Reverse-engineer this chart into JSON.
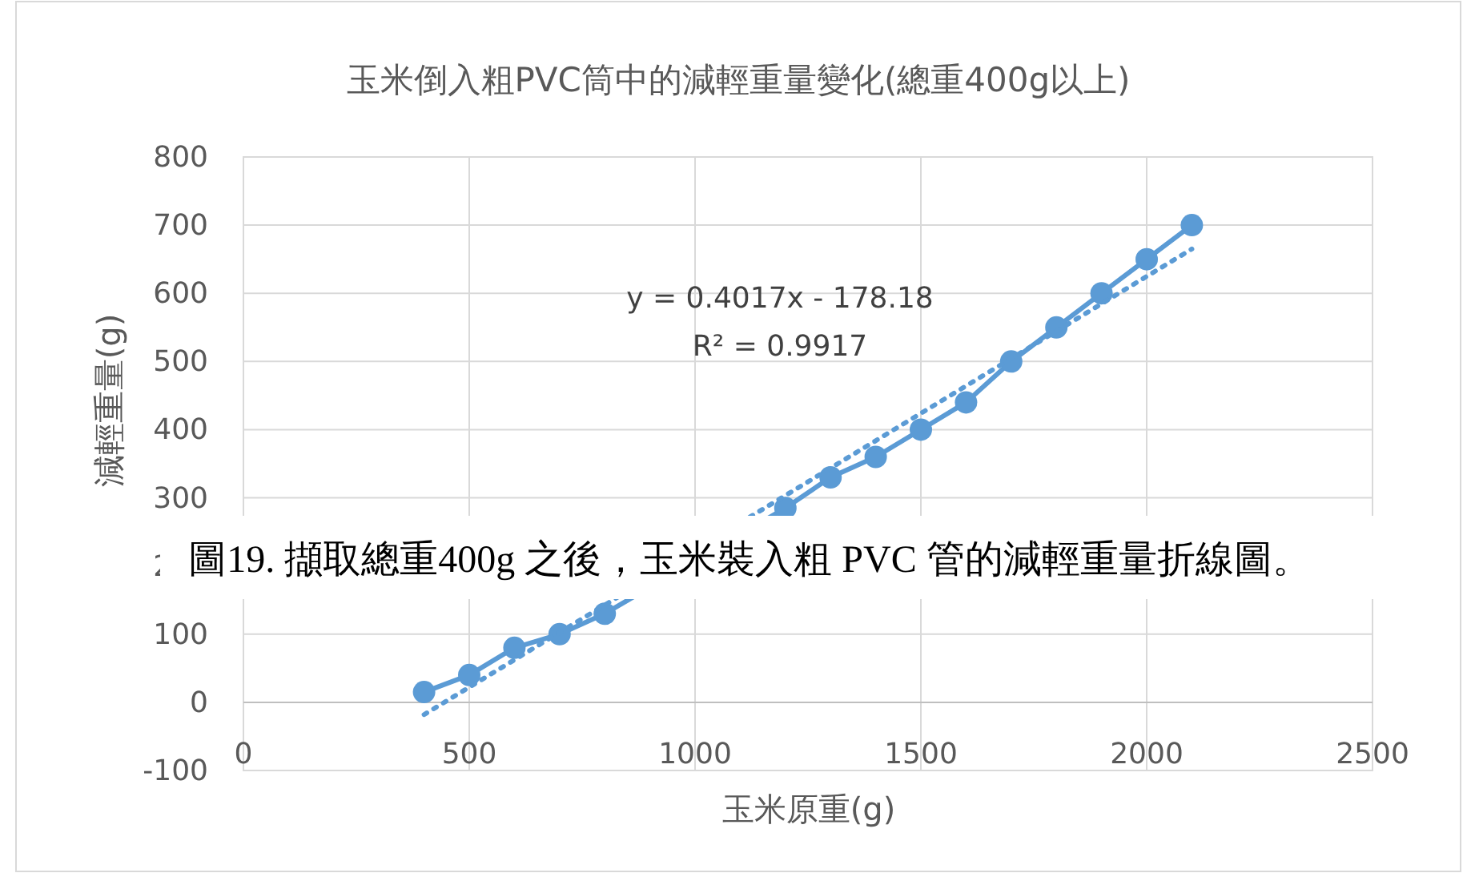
{
  "chart_data": {
    "type": "line",
    "title": "玉米倒入粗PVC筒中的減輕重量變化(總重400g以上)",
    "xlabel": "玉米原重(g)",
    "ylabel": "減輕重量(g)",
    "xlim": [
      0,
      2500
    ],
    "xticks": [
      0,
      500,
      1000,
      1500,
      2000,
      2500
    ],
    "ylim": [
      -100,
      800
    ],
    "yticks": [
      -100,
      0,
      100,
      200,
      300,
      400,
      500,
      600,
      700,
      800
    ],
    "grid": true,
    "marker": "circle",
    "line_style": "solid",
    "series": [
      {
        "color": "#5b9bd5",
        "x": [
          400,
          500,
          600,
          700,
          800,
          1200,
          1300,
          1400,
          1500,
          1600,
          1700,
          1800,
          1900,
          2000,
          2100
        ],
        "values": [
          15,
          40,
          80,
          100,
          130,
          285,
          330,
          360,
          400,
          440,
          500,
          550,
          600,
          650,
          700
        ]
      },
      {
        "type": "line",
        "color": "#5b9bd5",
        "marker": "none",
        "line_style": "dotted",
        "x": [
          400,
          2100
        ],
        "values": [
          -18,
          665
        ]
      }
    ],
    "annotations": [
      "y = 0.4017x - 178.18",
      "R² = 0.9917",
      "圖19. 擷取總重400g 之後，玉米裝入粗 PVC 管的減輕重量折線圖。"
    ]
  }
}
